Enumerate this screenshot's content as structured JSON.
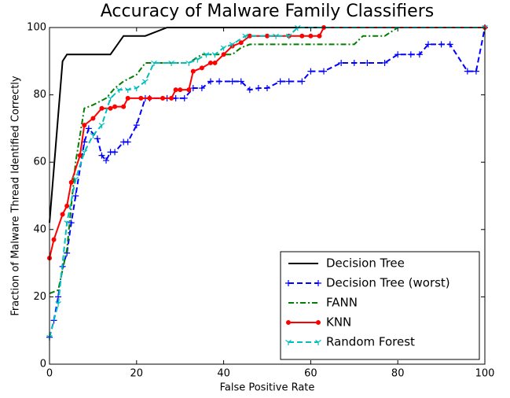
{
  "chart_data": {
    "type": "line",
    "title": "Accuracy of Malware Family Classifiers",
    "x_label": "False Positive Rate",
    "y_label": "Fraction of Malware Thread Identified Correctly",
    "xlim": [
      0,
      100
    ],
    "ylim": [
      0,
      100
    ],
    "xticks": [
      0,
      20,
      40,
      60,
      80,
      100
    ],
    "yticks": [
      0,
      20,
      40,
      60,
      80,
      100
    ],
    "grid": false,
    "legend": "lower right",
    "series": [
      {
        "name": "Decision Tree",
        "color": "#000000",
        "dash": "solid",
        "marker": "none",
        "x": [
          0,
          3,
          4,
          5,
          14,
          17,
          22,
          27,
          100
        ],
        "values": [
          42,
          90,
          92,
          92,
          92,
          97.5,
          97.5,
          100,
          100
        ]
      },
      {
        "name": "Decision Tree (worst)",
        "color": "#0000ff",
        "dash": "dashed",
        "marker": "plus",
        "x": [
          0,
          1,
          2,
          3,
          4,
          5,
          6,
          8,
          9,
          11,
          12,
          13,
          14,
          15,
          17,
          18,
          20,
          22,
          23,
          27,
          29,
          31,
          33,
          35,
          37,
          39,
          42,
          44,
          46,
          48,
          50,
          53,
          55,
          58,
          60,
          63,
          67,
          70,
          73,
          77,
          80,
          83,
          85,
          87,
          90,
          92,
          96,
          98,
          100
        ],
        "values": [
          8,
          13,
          20,
          29,
          33,
          42,
          50,
          66,
          70,
          67,
          62,
          60.5,
          63,
          63,
          66,
          66,
          71,
          79,
          79,
          79,
          79,
          79,
          82,
          82,
          84,
          84,
          84,
          84,
          81.5,
          82,
          82,
          84,
          84,
          84,
          87,
          87,
          89.5,
          89.5,
          89.5,
          89.5,
          92,
          92,
          92,
          95,
          95,
          95,
          87,
          87,
          100
        ]
      },
      {
        "name": "FANN",
        "color": "#008000",
        "dash": "dashdot",
        "marker": "none",
        "x": [
          0,
          2,
          4,
          6,
          8,
          10,
          13,
          15,
          17,
          20,
          22,
          27,
          30,
          32,
          35,
          38,
          40,
          42,
          44,
          46,
          50,
          55,
          60,
          65,
          70,
          72,
          77,
          80,
          100
        ],
        "values": [
          21,
          22,
          34,
          60,
          76,
          77,
          79,
          82,
          84,
          86,
          89.5,
          89.5,
          89.5,
          89.5,
          92,
          92,
          92,
          92,
          94,
          95,
          95,
          95,
          95,
          95,
          95,
          97.5,
          97.5,
          100,
          100
        ]
      },
      {
        "name": "KNN",
        "color": "#ff0000",
        "dash": "solid",
        "marker": "circle",
        "x": [
          0,
          1,
          3,
          4,
          5,
          7,
          8,
          10,
          12,
          14,
          15,
          17,
          18,
          21,
          23,
          26,
          28,
          29,
          30,
          32,
          33,
          35,
          37,
          38,
          40,
          42,
          44,
          46,
          50,
          55,
          58,
          60,
          62,
          63,
          100
        ],
        "values": [
          31.5,
          37,
          44.5,
          47,
          54,
          62,
          71,
          73,
          76,
          76,
          76.5,
          76.5,
          79,
          79,
          79,
          79,
          79,
          81.5,
          81.5,
          81.5,
          87,
          88,
          89.5,
          89.5,
          92,
          94.5,
          95.5,
          97.5,
          97.5,
          97.5,
          97.5,
          97.5,
          97.5,
          100,
          100
        ]
      },
      {
        "name": "Random Forest",
        "color": "#00bfbf",
        "dash": "dashed",
        "marker": "tri",
        "x": [
          0,
          2,
          4,
          6,
          8,
          10,
          12,
          14,
          16,
          18,
          20,
          22,
          24,
          28,
          32,
          34,
          36,
          38,
          40,
          42,
          45,
          52,
          55,
          57,
          100
        ],
        "values": [
          8,
          18,
          42,
          55,
          63,
          68,
          71,
          79,
          81.5,
          81.5,
          82,
          84,
          89.5,
          89.5,
          89.5,
          90.5,
          92,
          92,
          94,
          95,
          97.5,
          97.5,
          97.5,
          100,
          100
        ]
      }
    ]
  }
}
